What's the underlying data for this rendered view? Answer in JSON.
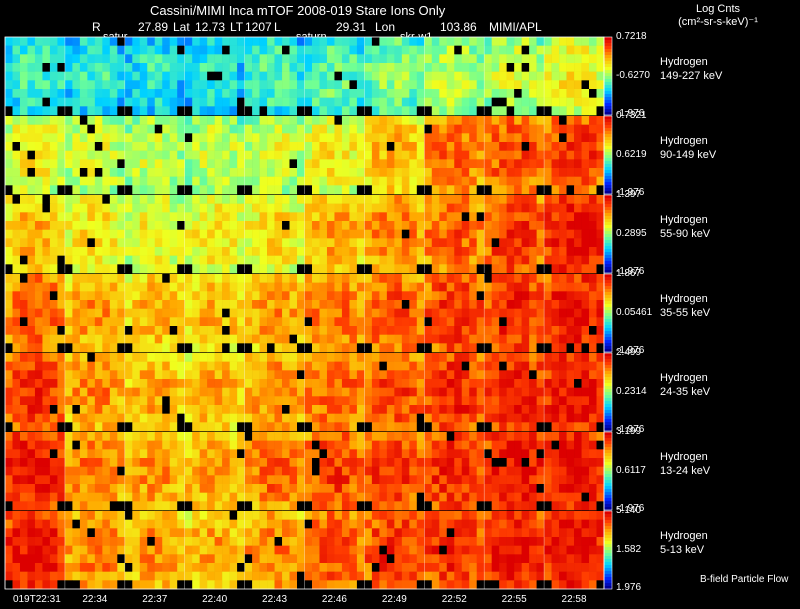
{
  "header": {
    "title": "Cassini/MIMI Inca mTOF  2008-019   Stare   Ions Only",
    "info": [
      {
        "label": "R",
        "value": "27.89"
      },
      {
        "label": "Lat",
        "value": "12.73"
      },
      {
        "label": "LT",
        "value": "1207"
      },
      {
        "label": "L",
        "value": "29.31"
      },
      {
        "label": "Lon",
        "value": "103.86"
      }
    ],
    "credit": "MIMI/APL",
    "subs": [
      "satur",
      "saturn",
      "skr-w1"
    ],
    "units_line1": "Log Cnts",
    "units_line2": "(cm²-sr-s-keV)⁻¹"
  },
  "chart_data": {
    "type": "heatmap",
    "grid_cols": 10,
    "x_labels": [
      "019T22:31",
      "22:34",
      "22:37",
      "22:40",
      "22:43",
      "22:46",
      "22:49",
      "22:52",
      "22:55",
      "22:58"
    ],
    "bottom_label": "B-field Particle Flow",
    "panels": [
      {
        "species": "Hydrogen",
        "energy": "149-227 keV",
        "cmax": "0.7218",
        "cmid": "-0.6270",
        "cmin": "-1.976",
        "level": [
          0.3,
          0.28,
          0.26,
          0.26,
          0.3,
          0.34,
          0.38,
          0.44,
          0.47,
          0.52
        ]
      },
      {
        "species": "Hydrogen",
        "energy": "90-149 keV",
        "cmax": "0.7321",
        "cmid": "0.6219",
        "cmin": "-1.976",
        "level": [
          0.52,
          0.48,
          0.46,
          0.46,
          0.48,
          0.54,
          0.62,
          0.72,
          0.76,
          0.8
        ]
      },
      {
        "species": "Hydrogen",
        "energy": "55-90 keV",
        "cmax": "1.397",
        "cmid": "0.2895",
        "cmin": "-1.976",
        "level": [
          0.62,
          0.56,
          0.52,
          0.54,
          0.56,
          0.64,
          0.7,
          0.74,
          0.8,
          0.86
        ]
      },
      {
        "species": "Hydrogen",
        "energy": "35-55 keV",
        "cmax": "1.867",
        "cmid": "0.05461",
        "cmin": "-1.976",
        "level": [
          0.74,
          0.66,
          0.62,
          0.62,
          0.66,
          0.72,
          0.76,
          0.8,
          0.82,
          0.86
        ]
      },
      {
        "species": "Hydrogen",
        "energy": "24-35 keV",
        "cmax": "2.499",
        "cmid": "0.2314",
        "cmin": "-1.976",
        "level": [
          0.8,
          0.68,
          0.64,
          0.64,
          0.68,
          0.74,
          0.78,
          0.82,
          0.84,
          0.86
        ]
      },
      {
        "species": "Hydrogen",
        "energy": "13-24 keV",
        "cmax": "3.199",
        "cmid": "0.6117",
        "cmin": "-1.976",
        "level": [
          0.86,
          0.7,
          0.66,
          0.66,
          0.72,
          0.78,
          0.8,
          0.82,
          0.86,
          0.88
        ]
      },
      {
        "species": "Hydrogen",
        "energy": "5-13 keV",
        "cmax": "5.140",
        "cmid": "1.582",
        "cmin": "1.976",
        "level": [
          0.86,
          0.7,
          0.66,
          0.64,
          0.7,
          0.76,
          0.8,
          0.82,
          0.86,
          0.88
        ]
      }
    ]
  }
}
